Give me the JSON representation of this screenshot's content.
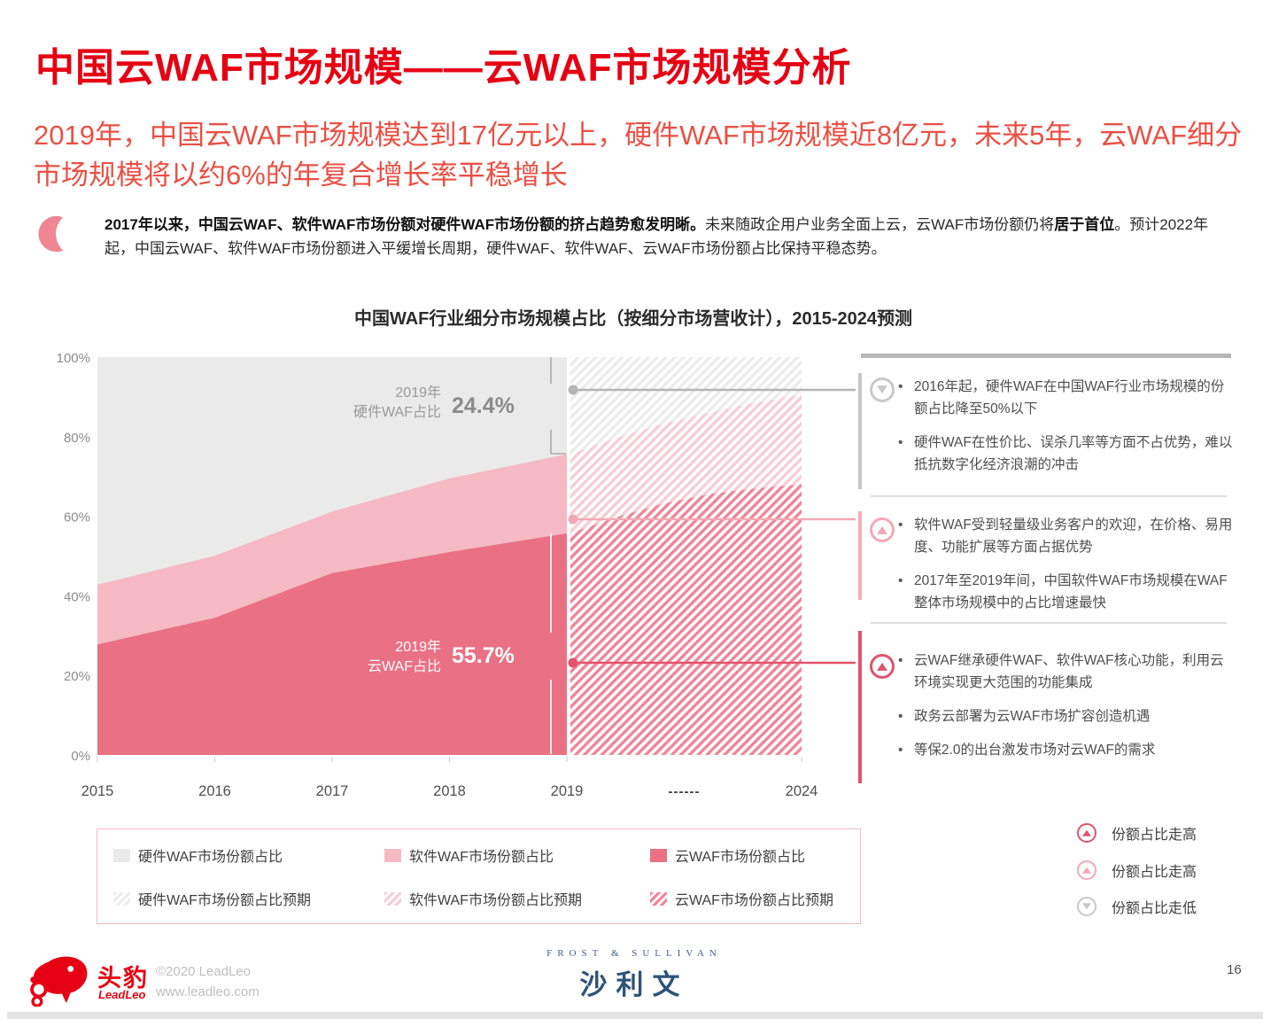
{
  "page": {
    "title": "中国云WAF市场规模——云WAF市场规模分析",
    "subtitle": "2019年，中国云WAF市场规模达到17亿元以上，硬件WAF市场规模近8亿元，未来5年，云WAF细分市场规模将以约6%的年复合增长率平稳增长",
    "intro_segments": [
      {
        "text": "2017年以来，中国云WAF、软件WAF市场份额对硬件WAF市场份额的挤占趋势愈发明晰。",
        "bold": true
      },
      {
        "text": "未来随政企用户业务全面上云，云WAF市场份额仍将",
        "bold": false
      },
      {
        "text": "居于首位",
        "bold": true
      },
      {
        "text": "。预计2022年起，中国云WAF、软件WAF市场份额进入平缓增长周期，硬件WAF、软件WAF、云WAF市场份额占比保持平稳态势。",
        "bold": false
      }
    ]
  },
  "chart_data": {
    "type": "area",
    "stacked_percent": true,
    "title": "中国WAF行业细分市场规模占比（按细分市场营收计），2015-2024预测",
    "x": [
      2015,
      2016,
      2017,
      2018,
      2019,
      2020,
      2021,
      2022,
      2023,
      2024
    ],
    "x_tick_labels": [
      "2015",
      "2016",
      "2017",
      "2018",
      "2019",
      "------",
      "2024"
    ],
    "y_tick_labels": [
      "0%",
      "20%",
      "40%",
      "60%",
      "80%",
      "100%"
    ],
    "ylim": [
      0,
      100
    ],
    "grid": false,
    "forecast_from": 2019,
    "series": [
      {
        "name": "云WAF市场份额占比",
        "color": "#ea7183",
        "hatch_color": "#ee8598",
        "values": [
          27.8,
          34.5,
          45.7,
          51.0,
          55.7,
          59.5,
          63.0,
          65.5,
          67.0,
          68.0
        ]
      },
      {
        "name": "软件WAF市场份额占比",
        "color": "#f5bac3",
        "hatch_color": "#f7cdd4",
        "values": [
          15.0,
          15.6,
          15.5,
          18.5,
          19.9,
          20.0,
          20.0,
          20.5,
          21.5,
          22.5
        ]
      },
      {
        "name": "硬件WAF市场份额占比",
        "color": "#eaeaea",
        "hatch_color": "#ececec",
        "values": [
          57.2,
          49.9,
          38.8,
          30.5,
          24.4,
          20.5,
          17.0,
          14.0,
          11.5,
          9.5
        ]
      }
    ],
    "annotations": [
      {
        "year_label": "2019年",
        "series_label": "硬件WAF占比",
        "value": "24.4%"
      },
      {
        "year_label": "2019年",
        "series_label": "云WAF占比",
        "value": "55.7%"
      }
    ],
    "connector_colors": [
      "#b4b4b4",
      "#f2a9b5",
      "#e4536b"
    ]
  },
  "legend": {
    "items": [
      {
        "label": "硬件WAF市场份额占比"
      },
      {
        "label": "软件WAF市场份额占比"
      },
      {
        "label": "云WAF市场份额占比"
      },
      {
        "label": "硬件WAF市场份额占比预期"
      },
      {
        "label": "软件WAF市场份额占比预期"
      },
      {
        "label": "云WAF市场份额占比预期"
      }
    ]
  },
  "panel": {
    "sections": [
      {
        "icon": "circle-arrow-down",
        "trend": "down",
        "accent": "#c9c9c9",
        "bullets": [
          "2016年起，硬件WAF在中国WAF行业市场规模的份额占比降至50%以下",
          "硬件WAF在性价比、误杀几率等方面不占优势，难以抵抗数字化经济浪潮的冲击"
        ]
      },
      {
        "icon": "circle-arrow-up",
        "trend": "up",
        "accent": "#f2a9b5",
        "bullets": [
          "软件WAF受到轻量级业务客户的欢迎，在价格、易用度、功能扩展等方面占据优势",
          "2017年至2019年间，中国软件WAF市场规模在WAF整体市场规模中的占比增速最快"
        ]
      },
      {
        "icon": "circle-arrow-up",
        "trend": "up",
        "accent": "#e0546d",
        "bullets": [
          "云WAF继承硬件WAF、软件WAF核心功能，利用云环境实现更大范围的功能集成",
          "政务云部署为云WAF市场扩容创造机遇",
          "等保2.0的出台激发市场对云WAF的需求"
        ]
      }
    ]
  },
  "trend_legend": {
    "items": [
      {
        "label": "份额占比走高",
        "trend": "up",
        "color": "#e0546d"
      },
      {
        "label": "份额占比走高",
        "trend": "up",
        "color": "#f2a9b5"
      },
      {
        "label": "份额占比走低",
        "trend": "down",
        "color": "#c9c9c9"
      }
    ]
  },
  "footer": {
    "brand_cn": "头豹",
    "brand_en": "LeadLeo",
    "copyright": "©2020 LeadLeo",
    "website": "www.leadleo.com",
    "partner_en": "FROST & SULLIVAN",
    "partner_cn": "沙利文",
    "page_number": "16"
  }
}
